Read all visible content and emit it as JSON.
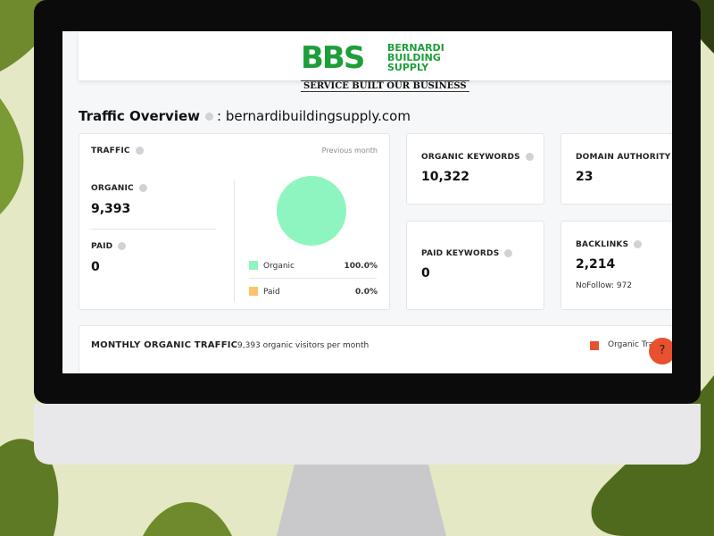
{
  "header": {
    "logo": "BBS",
    "company": [
      "BERNARDI",
      "BUILDING",
      "SUPPLY"
    ],
    "tagline": "SERVICE BUILT OUR BUSINESS"
  },
  "overview": {
    "title": "Traffic Overview",
    "separator": ":",
    "domain": "bernardibuildingsupply.com"
  },
  "traffic": {
    "title": "TRAFFIC",
    "period": "Previous month",
    "organic": {
      "label": "ORGANIC",
      "value": "9,393"
    },
    "paid": {
      "label": "PAID",
      "value": "0"
    },
    "legend": [
      {
        "name": "Organic",
        "share": "100.0%"
      },
      {
        "name": "Paid",
        "share": "0.0%"
      }
    ]
  },
  "cards": [
    {
      "label": "ORGANIC KEYWORDS",
      "value": "10,322"
    },
    {
      "label": "DOMAIN AUTHORITY",
      "value": "23"
    },
    {
      "label": "PAID KEYWORDS",
      "value": "0"
    },
    {
      "label": "BACKLINKS",
      "value": "2,214",
      "note": "NoFollow: 972"
    }
  ],
  "monthly": {
    "title": "MONTHLY ORGANIC TRAFFIC",
    "summary": "9,393 organic visitors per month",
    "legend": "Organic Traf"
  },
  "help": "?"
}
